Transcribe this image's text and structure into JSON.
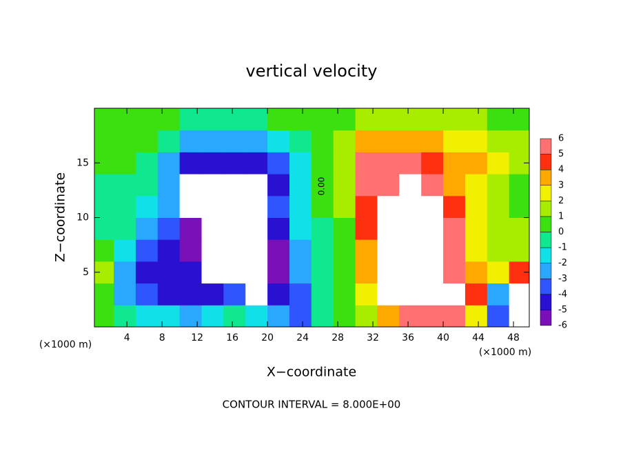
{
  "chart_data": {
    "type": "heatmap",
    "title": "vertical velocity",
    "xlabel": "X−coordinate",
    "ylabel": "Z−coordinate",
    "x_unit": "(×1000 m)",
    "footer": "CONTOUR INTERVAL = 8.000E+00",
    "contour_label": "0.00",
    "xlim": [
      0.3,
      49.8
    ],
    "ylim": [
      0,
      20
    ],
    "xticks": [
      4,
      8,
      12,
      16,
      20,
      24,
      28,
      32,
      36,
      40,
      44,
      48
    ],
    "yticks": [
      5,
      10,
      15
    ],
    "x": [
      1.25,
      3.75,
      6.25,
      8.75,
      11.25,
      13.75,
      16.25,
      18.75,
      21.25,
      23.75,
      26.25,
      28.75,
      31.25,
      33.75,
      36.25,
      38.75,
      41.25,
      43.75,
      46.25,
      48.75
    ],
    "y": [
      1,
      3,
      5,
      7,
      9,
      11,
      13,
      15,
      17,
      19
    ],
    "z": [
      [
        0,
        -1,
        -2,
        -2,
        -3,
        -2,
        -1,
        -2,
        -3,
        -4,
        -1,
        0.5,
        1,
        3,
        5,
        6,
        5,
        2,
        -4,
        7
      ],
      [
        0.5,
        -3,
        -4,
        -5,
        -5,
        -5,
        -4,
        -9,
        -5,
        -4,
        -1,
        0.5,
        2,
        9,
        9,
        7,
        9,
        4,
        -3,
        9
      ],
      [
        1,
        -3,
        -5,
        -5,
        -5,
        -9,
        -9,
        -9,
        -6,
        -3,
        -1,
        0.5,
        3,
        9,
        9,
        9,
        6,
        3,
        2,
        4
      ],
      [
        0,
        -2,
        -4,
        -5,
        -6,
        -9,
        -9,
        -9,
        -6,
        -3,
        -0.5,
        0.5,
        3,
        9,
        9,
        9,
        6,
        2,
        1,
        1
      ],
      [
        -0.5,
        -1,
        -3,
        -4,
        -6,
        -9,
        -9,
        -9,
        -5,
        -2,
        -0.5,
        0.5,
        4,
        9,
        9,
        9,
        5,
        2,
        1,
        1
      ],
      [
        -0.5,
        -1,
        -2,
        -3,
        -7,
        -9,
        -9,
        -9,
        -4,
        -2,
        0,
        1,
        4,
        9,
        9,
        8,
        4,
        2,
        1,
        0
      ],
      [
        -0.5,
        -0.5,
        -1,
        -3,
        -9,
        -9,
        -9,
        -9,
        -5,
        -2,
        0,
        1,
        5,
        6,
        9,
        5,
        3,
        2,
        1,
        0
      ],
      [
        0,
        0,
        -0.5,
        -3,
        -5,
        -5,
        -5,
        -5,
        -4,
        -2,
        0,
        1,
        5,
        5,
        5,
        4,
        3,
        3,
        2,
        1
      ],
      [
        0.5,
        0.5,
        0,
        -1,
        -3,
        -3,
        -3,
        -3,
        -2,
        -1,
        0,
        1,
        3,
        3,
        3,
        3,
        2,
        2,
        1,
        1
      ],
      [
        0.5,
        0.5,
        0.5,
        0,
        -0.5,
        -0.5,
        -0.5,
        -0.5,
        0,
        0,
        0,
        0.5,
        1,
        1,
        1,
        1,
        1,
        1,
        0.5,
        0.5
      ]
    ],
    "clim": [
      -6,
      6
    ],
    "cticks": [
      -6,
      -5,
      -4,
      -3,
      -2,
      -1,
      0,
      1,
      2,
      3,
      4,
      5,
      6
    ],
    "colors": [
      "#7a10b8",
      "#2a10d0",
      "#2f55ff",
      "#2aa8ff",
      "#10e0e8",
      "#10e890",
      "#3ce010",
      "#a8ec00",
      "#f0f000",
      "#ffa800",
      "#ff3010",
      "#ff7070"
    ]
  }
}
